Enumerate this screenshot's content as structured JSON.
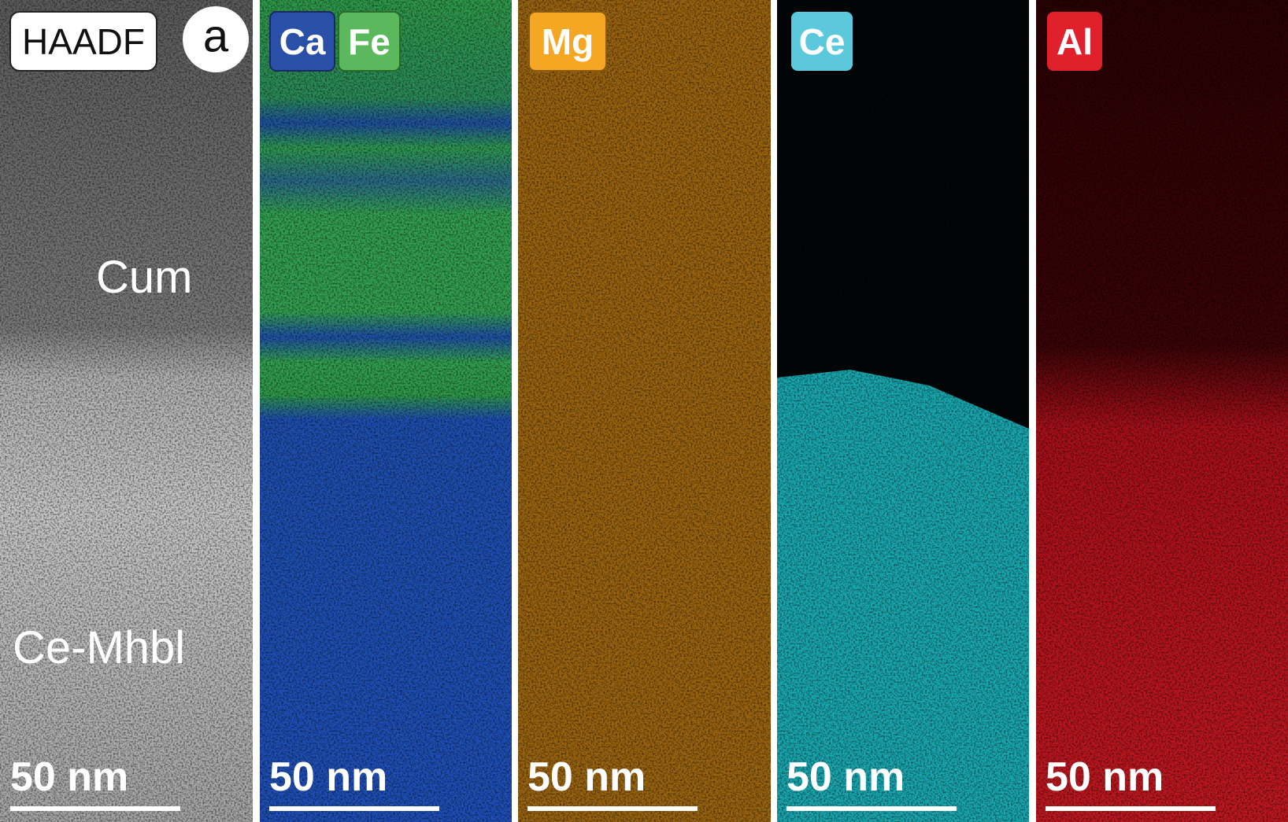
{
  "panels": [
    {
      "labels": [
        "HAADF",
        "a"
      ],
      "annotations": [
        "Cum",
        "Ce-Mhbl"
      ],
      "scale_bar": "50 nm"
    },
    {
      "labels": [
        "Ca",
        "Fe"
      ],
      "scale_bar": "50 nm"
    },
    {
      "labels": [
        "Mg"
      ],
      "scale_bar": "50 nm"
    },
    {
      "labels": [
        "Ce"
      ],
      "scale_bar": "50 nm"
    },
    {
      "labels": [
        "Al"
      ],
      "scale_bar": "50 nm"
    }
  ]
}
